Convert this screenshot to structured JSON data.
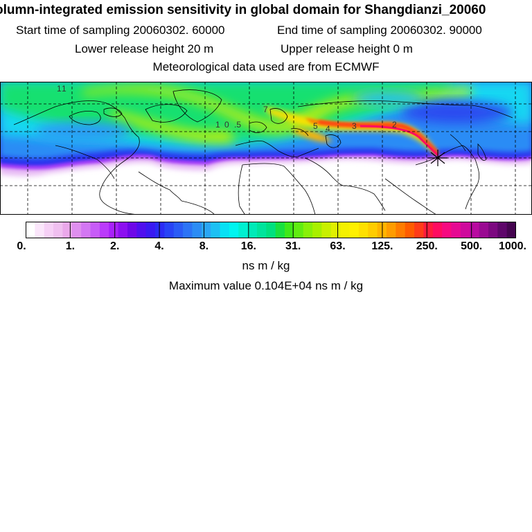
{
  "header": {
    "title": "olumn-integrated emission sensitivity in global domain for Shangdianzi_20060",
    "start_time": "Start time of sampling 20060302. 60000",
    "end_time": "End time of sampling 20060302. 90000",
    "lower_release": "Lower release height   20 m",
    "upper_release": "Upper release height    0 m",
    "met_data": "Meteorological data used are from ECMWF"
  },
  "map": {
    "contour_labels": [
      "1",
      "1",
      "1",
      "0",
      ".5",
      "7",
      "5",
      "4",
      "3",
      "2"
    ],
    "colors": {
      "coast": "#000000",
      "grid": "#000000",
      "blank": "#ffffff"
    }
  },
  "colorbar": {
    "colors": [
      "#ffffff",
      "#fbe6fb",
      "#f6d0f6",
      "#f0bff0",
      "#eaa8ea",
      "#df8fef",
      "#d377f3",
      "#c75cf7",
      "#bb3bfb",
      "#a821fb",
      "#8c10f0",
      "#6e08e8",
      "#5010ef",
      "#3a1af2",
      "#2b2cf5",
      "#2844f6",
      "#2a5cf6",
      "#2c74f6",
      "#2c8cf5",
      "#2aa6f5",
      "#1ec0f3",
      "#08e0f5",
      "#00f5f0",
      "#00f0d0",
      "#00eab8",
      "#00e49c",
      "#00e080",
      "#18e040",
      "#40e818",
      "#60ec10",
      "#88f008",
      "#a8f000",
      "#c8f000",
      "#e0f000",
      "#f4f000",
      "#fff000",
      "#ffe000",
      "#ffcc00",
      "#ffb400",
      "#ff9c00",
      "#ff7c00",
      "#ff5c00",
      "#ff3c18",
      "#ff1c3c",
      "#ff0c60",
      "#f70a80",
      "#e60a92",
      "#cf0a9c",
      "#b80aa0",
      "#9a0a92",
      "#7c0880",
      "#5e066a",
      "#44044f"
    ],
    "tick_labels": [
      "0.",
      "1.",
      "2.",
      "4.",
      "8.",
      "16.",
      "31.",
      "63.",
      "125.",
      "250.",
      "500.",
      "1000."
    ]
  },
  "footer": {
    "units": "ns m / kg",
    "max_value": "Maximum value  0.104E+04 ns m / kg"
  }
}
